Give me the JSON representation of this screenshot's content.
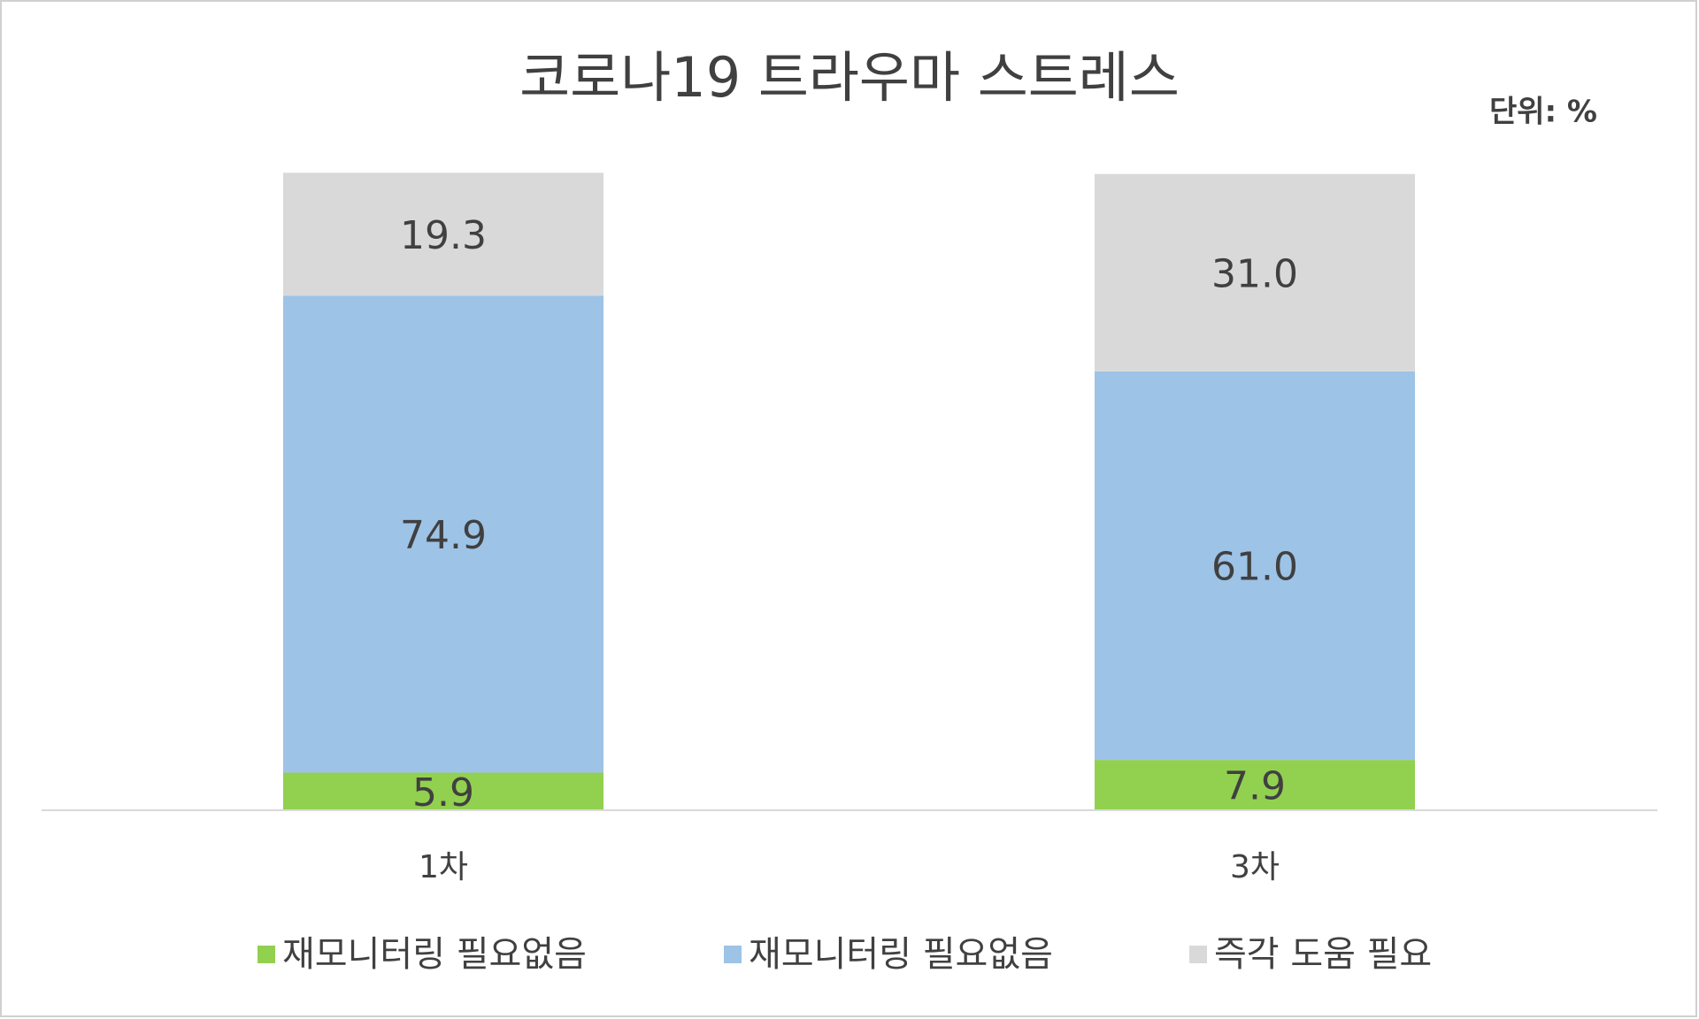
{
  "chart_data": {
    "type": "stacked_bar",
    "title": "코로나19 트라우마 스트레스",
    "unit_label": "단위: %",
    "categories": [
      "1차",
      "3차"
    ],
    "series": [
      {
        "name": "재모니터링 필요없음",
        "color": "#92d050",
        "values": [
          5.9,
          7.9
        ],
        "value_labels": [
          "5.9",
          "7.9"
        ]
      },
      {
        "name": "재모니터링 필요없음",
        "color": "#9dc3e6",
        "values": [
          74.9,
          61.0
        ],
        "value_labels": [
          "74.9",
          "61.0"
        ]
      },
      {
        "name": "즉각 도움 필요",
        "color": "#d9d9d9",
        "values": [
          19.3,
          31.0
        ],
        "value_labels": [
          "19.3",
          "31.0"
        ]
      }
    ],
    "ylim": [
      0,
      100
    ],
    "legend": "bottom"
  }
}
